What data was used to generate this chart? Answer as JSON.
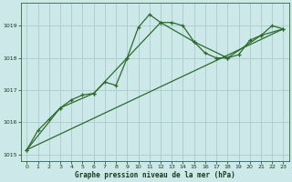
{
  "title": "Graphe pression niveau de la mer (hPa)",
  "background_color": "#cce8e8",
  "grid_color": "#aacccc",
  "line_color": "#2d6a2d",
  "xlim": [
    -0.5,
    23.5
  ],
  "ylim": [
    1014.8,
    1019.7
  ],
  "yticks": [
    1015,
    1016,
    1017,
    1018,
    1019
  ],
  "xticks": [
    0,
    1,
    2,
    3,
    4,
    5,
    6,
    7,
    8,
    9,
    10,
    11,
    12,
    13,
    14,
    15,
    16,
    17,
    18,
    19,
    20,
    21,
    22,
    23
  ],
  "series1_x": [
    0,
    1,
    2,
    3,
    4,
    5,
    6,
    7,
    8,
    9,
    10,
    11,
    12,
    13,
    14,
    15,
    16,
    17,
    18,
    19,
    20,
    21,
    22,
    23
  ],
  "series1_y": [
    1015.15,
    1015.75,
    1016.1,
    1016.45,
    1016.7,
    1016.85,
    1016.9,
    1017.25,
    1017.15,
    1018.0,
    1018.95,
    1019.35,
    1019.1,
    1019.1,
    1019.0,
    1018.5,
    1018.15,
    1018.0,
    1018.0,
    1018.1,
    1018.55,
    1018.7,
    1019.0,
    1018.9
  ],
  "series2_x": [
    0,
    23
  ],
  "series2_y": [
    1015.15,
    1018.9
  ],
  "series3_x": [
    0,
    3,
    6,
    9,
    12,
    15,
    18,
    21,
    23
  ],
  "series3_y": [
    1015.15,
    1016.45,
    1016.9,
    1018.0,
    1019.1,
    1018.5,
    1018.0,
    1018.7,
    1018.9
  ]
}
